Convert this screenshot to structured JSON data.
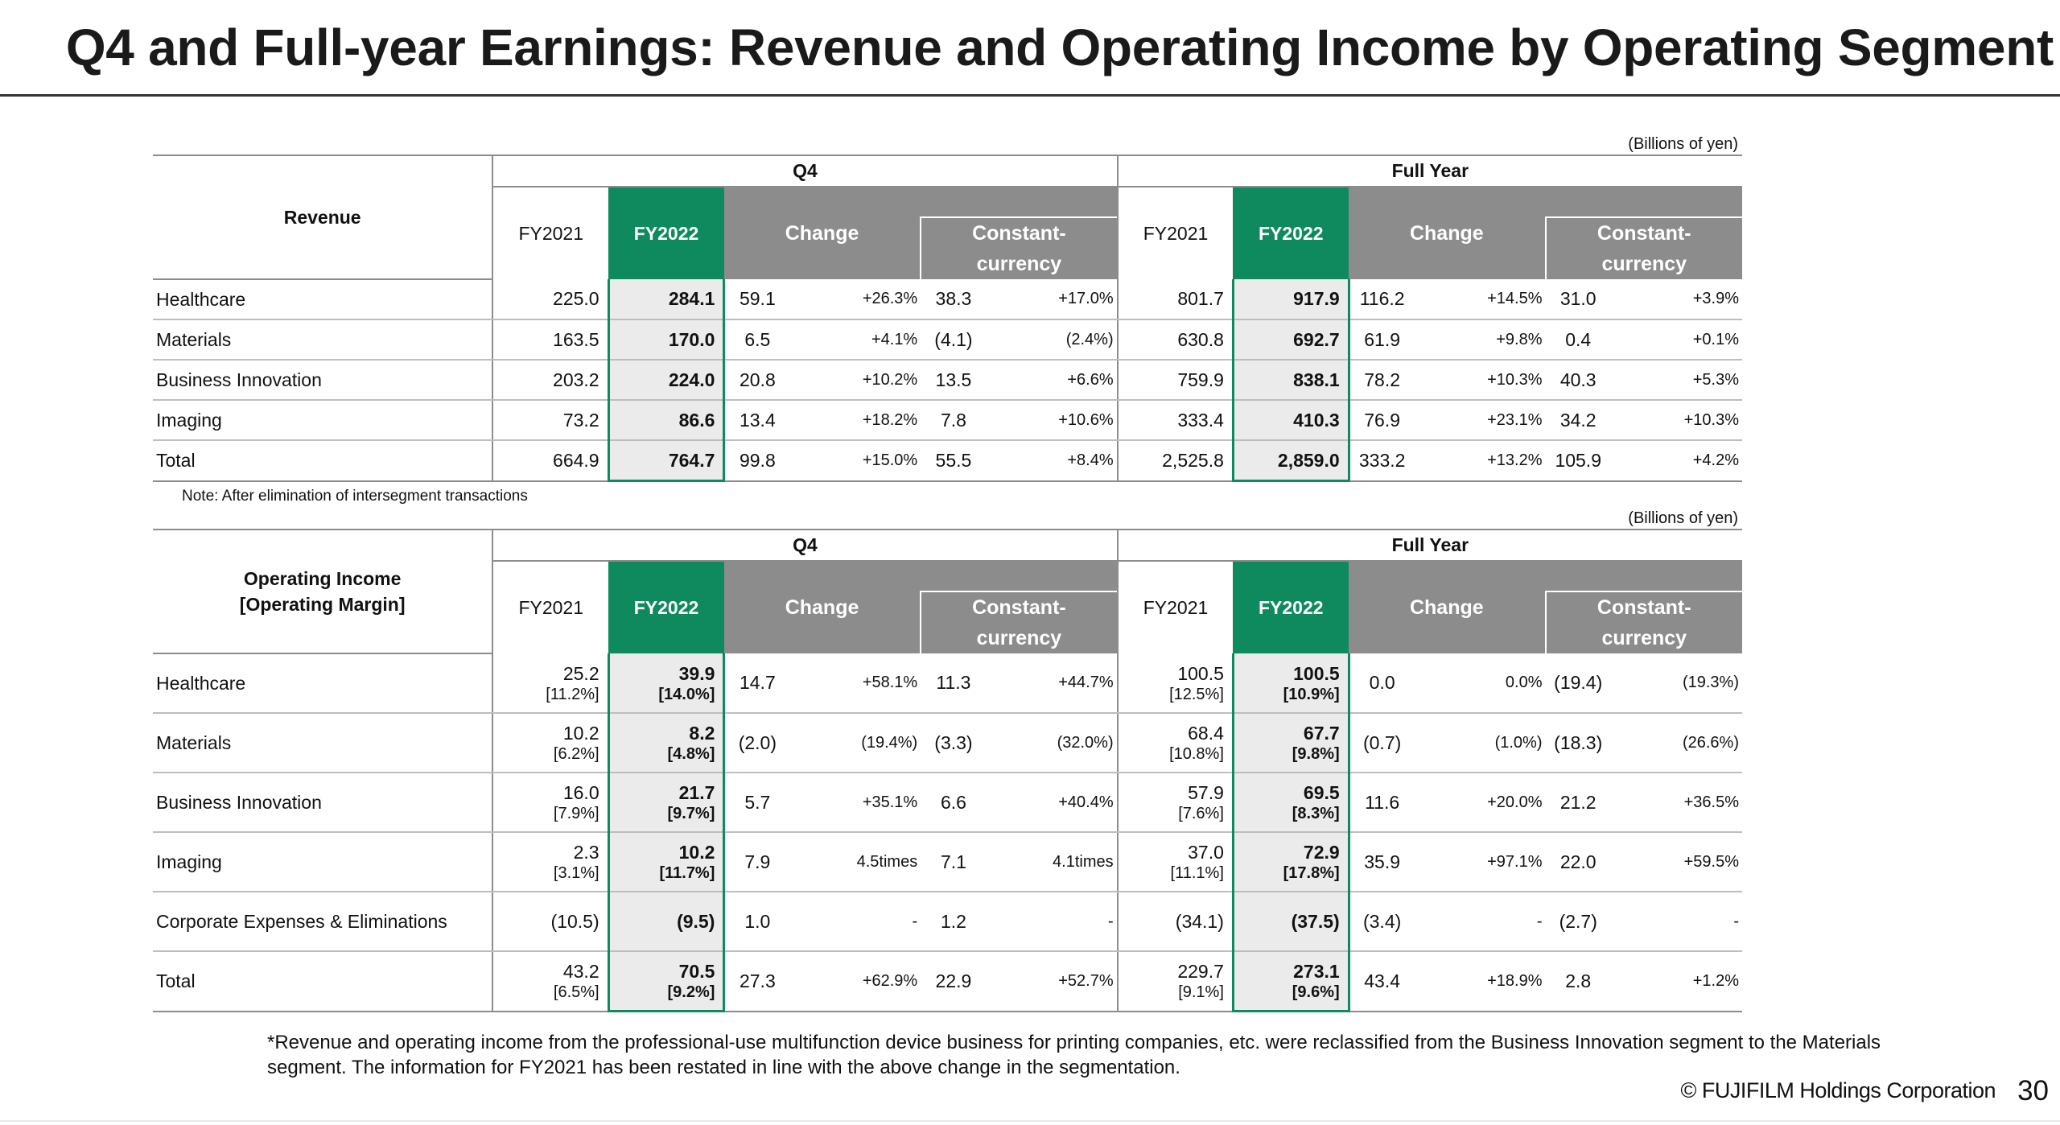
{
  "title": "Q4 and Full-year Earnings: Revenue and Operating Income by Operating Segment",
  "unit_label": "(Billions of yen)",
  "period_q4": "Q4",
  "period_fy": "Full Year",
  "col_fy2021": "FY2021",
  "col_fy2022": "FY2022",
  "col_change": "Change",
  "col_constant": "Constant-\ncurrency",
  "revenue": {
    "header": "Revenue",
    "rows": [
      {
        "segment": "Healthcare",
        "q4_fy21": "225.0",
        "q4_fy22": "284.1",
        "q4_chg": "59.1",
        "q4_chg_pct": "+26.3%",
        "q4_cc": "38.3",
        "q4_cc_pct": "+17.0%",
        "fy_fy21": "801.7",
        "fy_fy22": "917.9",
        "fy_chg": "116.2",
        "fy_chg_pct": "+14.5%",
        "fy_cc": "31.0",
        "fy_cc_pct": "+3.9%"
      },
      {
        "segment": "Materials",
        "q4_fy21": "163.5",
        "q4_fy22": "170.0",
        "q4_chg": "6.5",
        "q4_chg_pct": "+4.1%",
        "q4_cc": "(4.1)",
        "q4_cc_pct": "(2.4%)",
        "fy_fy21": "630.8",
        "fy_fy22": "692.7",
        "fy_chg": "61.9",
        "fy_chg_pct": "+9.8%",
        "fy_cc": "0.4",
        "fy_cc_pct": "+0.1%"
      },
      {
        "segment": "Business Innovation",
        "q4_fy21": "203.2",
        "q4_fy22": "224.0",
        "q4_chg": "20.8",
        "q4_chg_pct": "+10.2%",
        "q4_cc": "13.5",
        "q4_cc_pct": "+6.6%",
        "fy_fy21": "759.9",
        "fy_fy22": "838.1",
        "fy_chg": "78.2",
        "fy_chg_pct": "+10.3%",
        "fy_cc": "40.3",
        "fy_cc_pct": "+5.3%"
      },
      {
        "segment": "Imaging",
        "q4_fy21": "73.2",
        "q4_fy22": "86.6",
        "q4_chg": "13.4",
        "q4_chg_pct": "+18.2%",
        "q4_cc": "7.8",
        "q4_cc_pct": "+10.6%",
        "fy_fy21": "333.4",
        "fy_fy22": "410.3",
        "fy_chg": "76.9",
        "fy_chg_pct": "+23.1%",
        "fy_cc": "34.2",
        "fy_cc_pct": "+10.3%"
      },
      {
        "segment": "Total",
        "q4_fy21": "664.9",
        "q4_fy22": "764.7",
        "q4_chg": "99.8",
        "q4_chg_pct": "+15.0%",
        "q4_cc": "55.5",
        "q4_cc_pct": "+8.4%",
        "fy_fy21": "2,525.8",
        "fy_fy22": "2,859.0",
        "fy_chg": "333.2",
        "fy_chg_pct": "+13.2%",
        "fy_cc": "105.9",
        "fy_cc_pct": "+4.2%"
      }
    ],
    "note": "Note: After elimination of  intersegment transactions"
  },
  "operating_income": {
    "header": "Operating Income\n[Operating Margin]",
    "rows": [
      {
        "segment": "Healthcare",
        "q4_fy21": "25.2",
        "q4_fy21_m": "[11.2%]",
        "q4_fy22": "39.9",
        "q4_fy22_m": "[14.0%]",
        "q4_chg": "14.7",
        "q4_chg_pct": "+58.1%",
        "q4_cc": "11.3",
        "q4_cc_pct": "+44.7%",
        "fy_fy21": "100.5",
        "fy_fy21_m": "[12.5%]",
        "fy_fy22": "100.5",
        "fy_fy22_m": "[10.9%]",
        "fy_chg": "0.0",
        "fy_chg_pct": "0.0%",
        "fy_cc": "(19.4)",
        "fy_cc_pct": "(19.3%)"
      },
      {
        "segment": "Materials",
        "q4_fy21": "10.2",
        "q4_fy21_m": "[6.2%]",
        "q4_fy22": "8.2",
        "q4_fy22_m": "[4.8%]",
        "q4_chg": "(2.0)",
        "q4_chg_pct": "(19.4%)",
        "q4_cc": "(3.3)",
        "q4_cc_pct": "(32.0%)",
        "fy_fy21": "68.4",
        "fy_fy21_m": "[10.8%]",
        "fy_fy22": "67.7",
        "fy_fy22_m": "[9.8%]",
        "fy_chg": "(0.7)",
        "fy_chg_pct": "(1.0%)",
        "fy_cc": "(18.3)",
        "fy_cc_pct": "(26.6%)"
      },
      {
        "segment": "Business Innovation",
        "q4_fy21": "16.0",
        "q4_fy21_m": "[7.9%]",
        "q4_fy22": "21.7",
        "q4_fy22_m": "[9.7%]",
        "q4_chg": "5.7",
        "q4_chg_pct": "+35.1%",
        "q4_cc": "6.6",
        "q4_cc_pct": "+40.4%",
        "fy_fy21": "57.9",
        "fy_fy21_m": "[7.6%]",
        "fy_fy22": "69.5",
        "fy_fy22_m": "[8.3%]",
        "fy_chg": "11.6",
        "fy_chg_pct": "+20.0%",
        "fy_cc": "21.2",
        "fy_cc_pct": "+36.5%"
      },
      {
        "segment": "Imaging",
        "q4_fy21": "2.3",
        "q4_fy21_m": "[3.1%]",
        "q4_fy22": "10.2",
        "q4_fy22_m": "[11.7%]",
        "q4_chg": "7.9",
        "q4_chg_pct": "4.5times",
        "q4_cc": "7.1",
        "q4_cc_pct": "4.1times",
        "fy_fy21": "37.0",
        "fy_fy21_m": "[11.1%]",
        "fy_fy22": "72.9",
        "fy_fy22_m": "[17.8%]",
        "fy_chg": "35.9",
        "fy_chg_pct": "+97.1%",
        "fy_cc": "22.0",
        "fy_cc_pct": "+59.5%"
      },
      {
        "segment": "Corporate Expenses & Eliminations",
        "q4_fy21": "(10.5)",
        "q4_fy21_m": "",
        "q4_fy22": "(9.5)",
        "q4_fy22_m": "",
        "q4_chg": "1.0",
        "q4_chg_pct": "-",
        "q4_cc": "1.2",
        "q4_cc_pct": "-",
        "fy_fy21": "(34.1)",
        "fy_fy21_m": "",
        "fy_fy22": "(37.5)",
        "fy_fy22_m": "",
        "fy_chg": "(3.4)",
        "fy_chg_pct": "-",
        "fy_cc": "(2.7)",
        "fy_cc_pct": "-"
      },
      {
        "segment": "Total",
        "q4_fy21": "43.2",
        "q4_fy21_m": "[6.5%]",
        "q4_fy22": "70.5",
        "q4_fy22_m": "[9.2%]",
        "q4_chg": "27.3",
        "q4_chg_pct": "+62.9%",
        "q4_cc": "22.9",
        "q4_cc_pct": "+52.7%",
        "fy_fy21": "229.7",
        "fy_fy21_m": "[9.1%]",
        "fy_fy22": "273.1",
        "fy_fy22_m": "[9.6%]",
        "fy_chg": "43.4",
        "fy_chg_pct": "+18.9%",
        "fy_cc": "2.8",
        "fy_cc_pct": "+1.2%"
      }
    ]
  },
  "footnote": "*Revenue and operating income from the professional-use multifunction device business for printing companies, etc. were reclassified from the Business Innovation segment to the Materials segment. The information for FY2021 has been restated in line with the above change in the segmentation.",
  "copyright": "© FUJIFILM Holdings Corporation",
  "page_number": "30",
  "colors": {
    "fy2022_header": "#0f8a5f",
    "change_header": "#8c8c8c",
    "fy2022_cell": "#ebebeb"
  }
}
